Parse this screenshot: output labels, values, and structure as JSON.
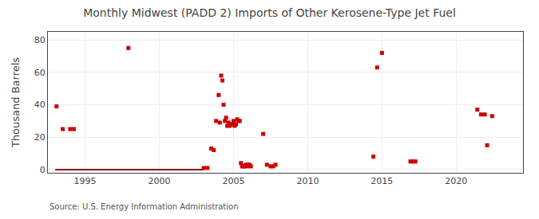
{
  "chart_data": {
    "type": "scatter",
    "title": "Monthly Midwest (PADD 2) Imports of Other Kerosene-Type Jet Fuel",
    "y_label": "Thousand Barrels",
    "annotations": [
      "Source: U.S. Energy Information Administration"
    ],
    "xlim": [
      1992.5,
      2024.5
    ],
    "ylim": [
      -2,
      85
    ],
    "xticks": [
      1995,
      2000,
      2005,
      2010,
      2015,
      2020
    ],
    "yticks": [
      0,
      20,
      40,
      60,
      80
    ],
    "grid": true,
    "series": [
      {
        "type": "line",
        "line_style": "solid",
        "color": "#8b0000",
        "x": [
          1993.0,
          2003.0
        ],
        "values": [
          0,
          0
        ]
      },
      {
        "type": "scatter",
        "marker": "square",
        "color": "#cc0000",
        "x": [
          1993.08,
          1993.5,
          1994.0,
          1994.25,
          1997.92,
          2003.0,
          2003.25,
          2003.5,
          2003.67,
          2003.83,
          2004.0,
          2004.08,
          2004.17,
          2004.25,
          2004.33,
          2004.42,
          2004.5,
          2004.58,
          2004.67,
          2004.75,
          2004.83,
          2004.92,
          2005.0,
          2005.08,
          2005.17,
          2005.25,
          2005.33,
          2005.42,
          2005.5,
          2005.58,
          2005.67,
          2005.75,
          2005.83,
          2005.92,
          2006.0,
          2006.08,
          2006.17,
          2007.0,
          2007.25,
          2007.5,
          2007.67,
          2007.83,
          2014.42,
          2014.67,
          2015.0,
          2016.92,
          2017.08,
          2017.25,
          2021.42,
          2021.67,
          2021.92,
          2022.08,
          2022.42
        ],
        "values": [
          39,
          25,
          25,
          25,
          75,
          1,
          1,
          13,
          12,
          30,
          46,
          29,
          58,
          55,
          40,
          30,
          32,
          27,
          29,
          27,
          28,
          28,
          30,
          27,
          28,
          31,
          30,
          30,
          4,
          2,
          2,
          2,
          3,
          2,
          3,
          3,
          2,
          22,
          3,
          2,
          2,
          3,
          8,
          63,
          72,
          5,
          5,
          5,
          37,
          34,
          34,
          15,
          33
        ]
      }
    ]
  }
}
